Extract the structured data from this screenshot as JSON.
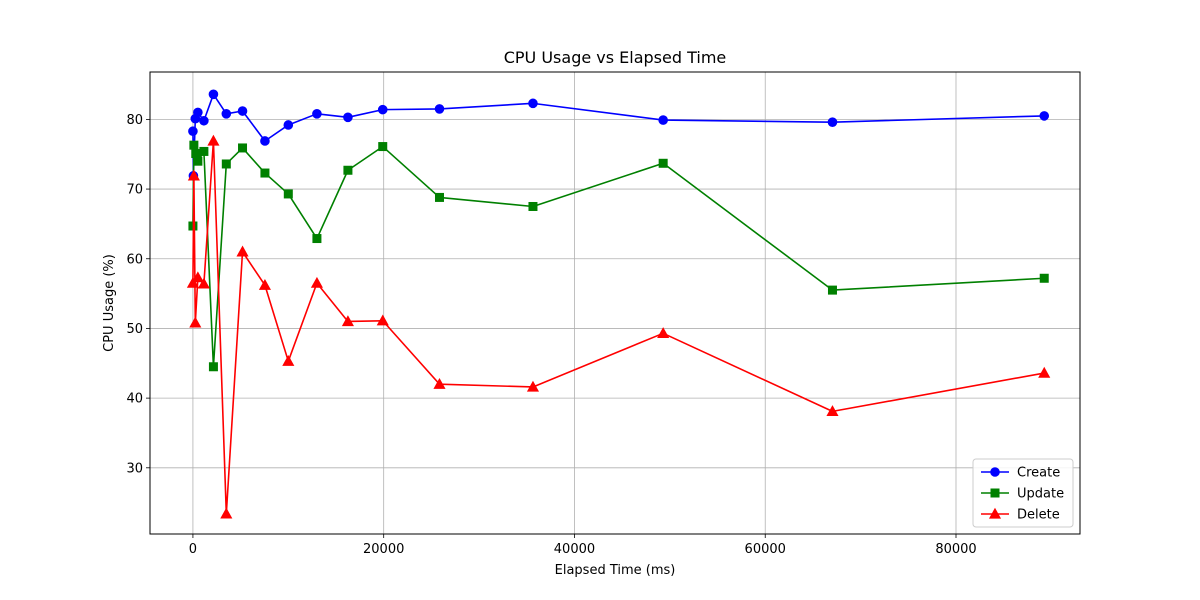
{
  "chart_data": {
    "type": "line",
    "title": "CPU Usage vs Elapsed Time",
    "xlabel": "Elapsed Time (ms)",
    "ylabel": "CPU Usage (%)",
    "xlim": [
      -4500,
      93000
    ],
    "ylim": [
      20.5,
      86.8
    ],
    "x_ticks": [
      0,
      20000,
      40000,
      60000,
      80000
    ],
    "y_ticks": [
      30,
      40,
      50,
      60,
      70,
      80
    ],
    "grid": true,
    "legend_position": "bottom-right",
    "series": [
      {
        "name": "Create",
        "color": "#0000ff",
        "marker": "circle",
        "points": [
          [
            0,
            78.3
          ],
          [
            50,
            71.9
          ],
          [
            250,
            80.1
          ],
          [
            520,
            81.0
          ],
          [
            1150,
            79.8
          ],
          [
            2150,
            83.6
          ],
          [
            3500,
            80.8
          ],
          [
            5200,
            81.2
          ],
          [
            7550,
            76.9
          ],
          [
            10000,
            79.2
          ],
          [
            13000,
            80.8
          ],
          [
            16250,
            80.3
          ],
          [
            19900,
            81.4
          ],
          [
            25850,
            81.5
          ],
          [
            35650,
            82.3
          ],
          [
            49300,
            79.9
          ],
          [
            67050,
            79.6
          ],
          [
            89250,
            80.5
          ]
        ]
      },
      {
        "name": "Update",
        "color": "#008000",
        "marker": "square",
        "points": [
          [
            0,
            64.7
          ],
          [
            100,
            76.3
          ],
          [
            300,
            75.1
          ],
          [
            520,
            74.0
          ],
          [
            1150,
            75.4
          ],
          [
            2150,
            44.5
          ],
          [
            3500,
            73.6
          ],
          [
            5200,
            75.9
          ],
          [
            7550,
            72.3
          ],
          [
            10000,
            69.3
          ],
          [
            13000,
            62.9
          ],
          [
            16250,
            72.7
          ],
          [
            19900,
            76.1
          ],
          [
            25850,
            68.8
          ],
          [
            35650,
            67.5
          ],
          [
            49300,
            73.7
          ],
          [
            67050,
            55.5
          ],
          [
            89250,
            57.2
          ]
        ]
      },
      {
        "name": "Delete",
        "color": "#ff0000",
        "marker": "triangle",
        "points": [
          [
            0,
            56.5
          ],
          [
            100,
            71.9
          ],
          [
            250,
            50.8
          ],
          [
            520,
            57.3
          ],
          [
            1150,
            56.4
          ],
          [
            2150,
            76.9
          ],
          [
            3500,
            23.4
          ],
          [
            5200,
            61.0
          ],
          [
            7550,
            56.2
          ],
          [
            10000,
            45.3
          ],
          [
            13000,
            56.5
          ],
          [
            16250,
            51.0
          ],
          [
            19900,
            51.1
          ],
          [
            25850,
            42.0
          ],
          [
            35650,
            41.6
          ],
          [
            49300,
            49.3
          ],
          [
            67050,
            38.1
          ],
          [
            89250,
            43.6
          ]
        ]
      }
    ]
  }
}
